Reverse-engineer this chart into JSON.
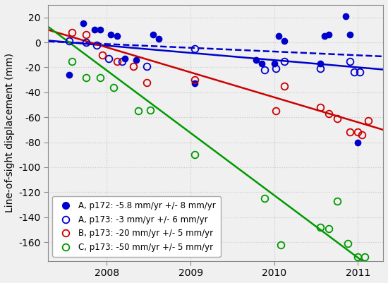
{
  "ylabel": "Line-of-sight displacement (mm)",
  "xlim": [
    2007.3,
    2011.3
  ],
  "ylim": [
    -175,
    30
  ],
  "yticks": [
    20,
    0,
    -20,
    -40,
    -60,
    -80,
    -100,
    -120,
    -140,
    -160
  ],
  "xticks": [
    2008,
    2009,
    2010,
    2011
  ],
  "background_color": "#f0f0f0",
  "grid_color": "#cccccc",
  "t0": 2007.55,
  "series_A_p172_x": [
    2007.55,
    2007.72,
    2007.85,
    2007.92,
    2008.05,
    2008.12,
    2008.22,
    2008.35,
    2008.55,
    2008.62,
    2009.05,
    2009.78,
    2009.85,
    2010.0,
    2010.05,
    2010.12,
    2010.55,
    2010.6,
    2010.65,
    2010.85,
    2010.9,
    2011.0
  ],
  "series_A_p172_y": [
    -26,
    15,
    10,
    10,
    6,
    5,
    -13,
    -14,
    6,
    3,
    -33,
    -14,
    -17,
    -17,
    5,
    1,
    -17,
    5,
    6,
    21,
    6,
    -80
  ],
  "series_A_p172_color": "#0000cc",
  "series_A_p172_label": "A, p172: -5.8 mm/yr +/- 8 mm/yr",
  "series_A_p172_rate": -5.8,
  "series_A_p172_b": 0.0,
  "series_A_p173_x": [
    2007.55,
    2007.75,
    2007.88,
    2008.02,
    2008.18,
    2008.48,
    2009.05,
    2009.88,
    2010.02,
    2010.12,
    2010.55,
    2010.9,
    2010.95,
    2011.02
  ],
  "series_A_p173_y": [
    1,
    0,
    -2,
    -13,
    -15,
    -19,
    -5,
    -22,
    -21,
    -15,
    -21,
    -15,
    -24,
    -24
  ],
  "series_A_p173_color": "#0000cc",
  "series_A_p173_label": "A, p173: -3 mm/yr +/- 6 mm/yr",
  "series_A_p173_rate": -3,
  "series_A_p173_b": 0.0,
  "series_B_p173_x": [
    2007.58,
    2007.75,
    2007.95,
    2008.12,
    2008.32,
    2008.48,
    2009.05,
    2010.02,
    2010.12,
    2010.55,
    2010.65,
    2010.75,
    2010.9,
    2011.0,
    2011.05,
    2011.12
  ],
  "series_B_p173_y": [
    8,
    6,
    -10,
    -15,
    -19,
    -32,
    -30,
    -55,
    -35,
    -52,
    -57,
    -61,
    -72,
    -72,
    -74,
    -63
  ],
  "series_B_p173_color": "#cc0000",
  "series_B_p173_label": "B, p173: -20 mm/yr +/- 5 mm/yr",
  "series_B_p173_rate": -20,
  "series_B_p173_b": 5.0,
  "series_C_p173_x": [
    2007.58,
    2007.75,
    2007.92,
    2008.08,
    2008.38,
    2008.52,
    2009.05,
    2009.88,
    2010.08,
    2010.55,
    2010.65,
    2010.75,
    2010.88,
    2011.0,
    2011.08
  ],
  "series_C_p173_y": [
    -15,
    -28,
    -28,
    -36,
    -55,
    -54,
    -90,
    -125,
    -162,
    -148,
    -149,
    -127,
    -161,
    -172,
    -172
  ],
  "series_C_p173_color": "#009900",
  "series_C_p173_label": "C, p173: -50 mm/yr +/- 5 mm/yr",
  "series_C_p173_rate": -50,
  "series_C_p173_b": 0.0
}
